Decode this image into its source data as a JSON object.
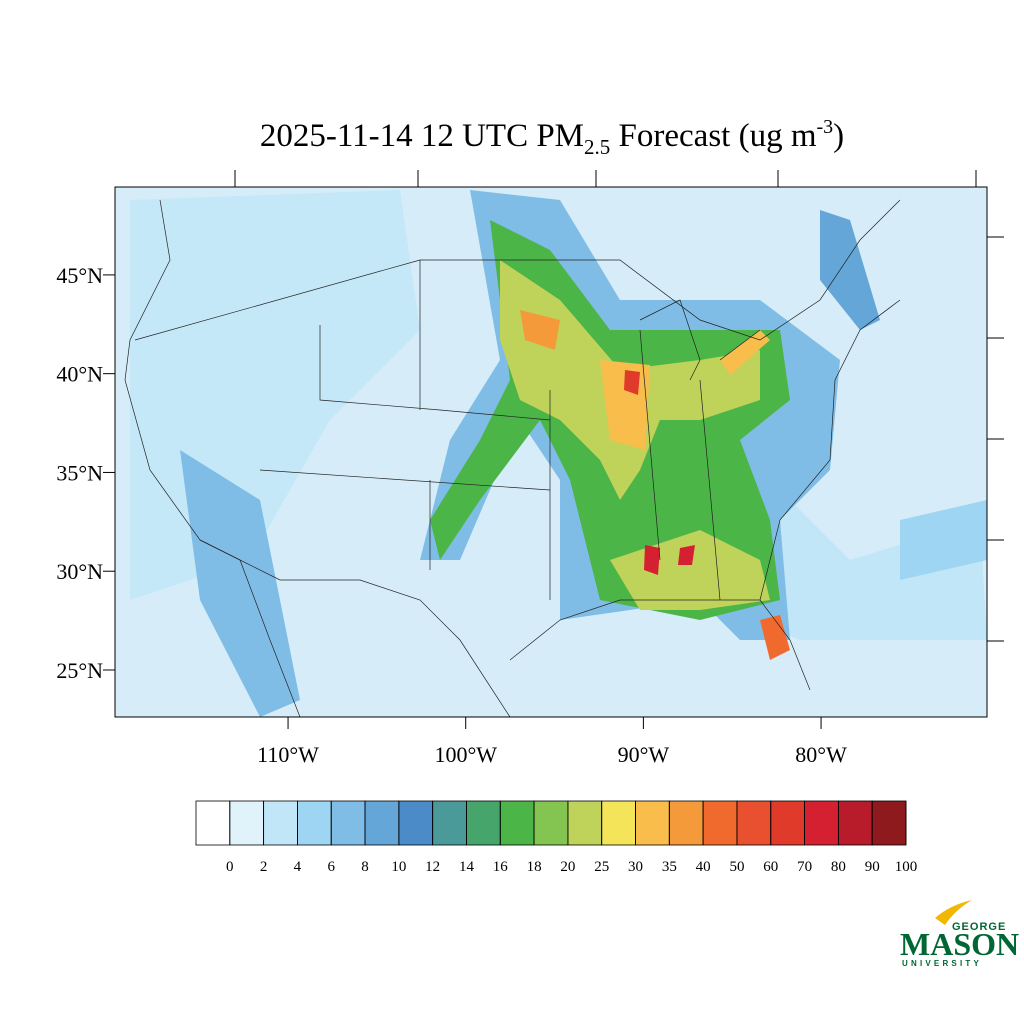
{
  "title": {
    "main": "2025-11-14 12 UTC PM",
    "subscript": "2.5",
    "middle": " Forecast (ug m",
    "superscript": "-3",
    "end": ")"
  },
  "map": {
    "lat_range": [
      22.62,
      49.45
    ],
    "lon_range": [
      -119.74,
      -70.66
    ],
    "lat_ticks": [
      {
        "value": 45,
        "label": "45°N"
      },
      {
        "value": 40,
        "label": "40°N"
      },
      {
        "value": 35,
        "label": "35°N"
      },
      {
        "value": 30,
        "label": "30°N"
      },
      {
        "value": 25,
        "label": "25°N"
      }
    ],
    "lon_ticks": [
      {
        "value": -110,
        "label": "110°W"
      },
      {
        "value": -100,
        "label": "100°W"
      },
      {
        "value": -90,
        "label": "90°W"
      },
      {
        "value": -80,
        "label": "80°W"
      }
    ]
  },
  "colorbar": {
    "levels": [
      0,
      2,
      4,
      6,
      8,
      10,
      12,
      14,
      16,
      18,
      20,
      25,
      30,
      35,
      40,
      50,
      60,
      70,
      80,
      90,
      100
    ],
    "colors": [
      "#ffffff",
      "#e0f3fb",
      "#c0e6f8",
      "#9dd5f3",
      "#80bde6",
      "#65a6d8",
      "#4a8bc8",
      "#4a9a9a",
      "#45a56a",
      "#4cb548",
      "#84c450",
      "#bfd35a",
      "#f4e45a",
      "#f8bd4a",
      "#f59a3a",
      "#f06a2e",
      "#e85030",
      "#e03a2a",
      "#d42030",
      "#b81c2a",
      "#8f1a1e"
    ]
  },
  "logo": {
    "top": "GEORGE",
    "name": "MASON",
    "bottom": "UNIVERSITY"
  }
}
